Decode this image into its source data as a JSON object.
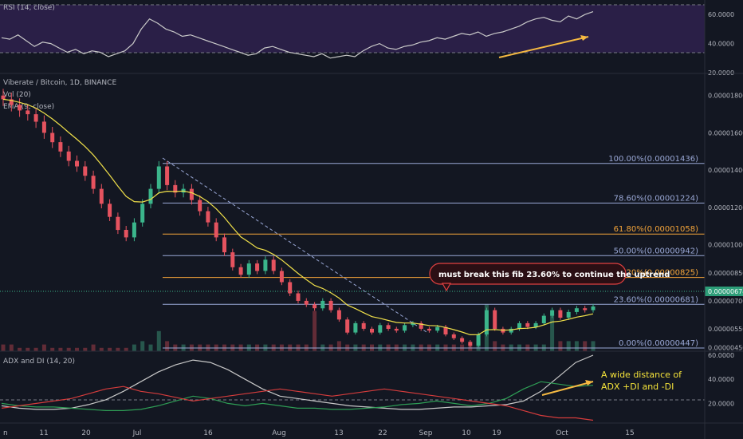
{
  "chart_data": [
    {
      "type": "line",
      "title": "RSI (14, close)",
      "ylim": [
        20,
        70
      ],
      "y_ticks": [
        "60.0000",
        "40.0000",
        "20.0000"
      ],
      "bands": [
        30,
        70
      ],
      "series": [
        {
          "color": "#c8c8c8",
          "values": [
            44,
            43,
            46,
            42,
            38,
            41,
            40,
            37,
            34,
            36,
            33,
            35,
            34,
            31,
            33,
            35,
            40,
            50,
            57,
            54,
            50,
            48,
            45,
            46,
            44,
            42,
            40,
            38,
            36,
            34,
            32,
            33,
            37,
            38,
            36,
            34,
            33,
            32,
            31,
            33,
            30,
            31,
            32,
            31,
            35,
            38,
            40,
            37,
            36,
            38,
            39,
            41,
            42,
            44,
            43,
            45,
            47,
            46,
            48,
            45,
            47,
            48,
            50,
            52,
            55,
            57,
            58,
            56,
            55,
            59,
            57,
            60,
            62
          ]
        }
      ]
    },
    {
      "type": "candlestick",
      "title": "Viberate / Bitcoin, 1D, BINANCE",
      "legend": [
        "Vol (20)",
        "EMA (9, close)"
      ],
      "x_ticks": [
        "n",
        "11",
        "20",
        "Jul",
        "16",
        "Aug",
        "13",
        "22",
        "Sep",
        "10",
        "19",
        "Oct",
        "15"
      ],
      "y_ticks": [
        "0.00001800",
        "0.00001600",
        "0.00001400",
        "0.00001200",
        "0.00001000",
        "0.00000850",
        "0.00000700",
        "0.00000550",
        "0.00000450"
      ],
      "last_price": "0.00000674",
      "ylim": [
        4.3e-06,
        1.85e-05
      ],
      "ema_color": "#f0e04a",
      "up_color": "#3bb58b",
      "down_color": "#e5535f",
      "fib_levels": [
        {
          "label": "100.00%(0.00001436)",
          "value": 1.436e-05,
          "color": "#9aa8d6"
        },
        {
          "label": "78.60%(0.00001224)",
          "value": 1.224e-05,
          "color": "#9aa8d6"
        },
        {
          "label": "61.80%(0.00001058)",
          "value": 1.058e-05,
          "color": "#f5a53a"
        },
        {
          "label": "50.00%(0.00000942)",
          "value": 9.42e-06,
          "color": "#9aa8d6"
        },
        {
          "label": "38.20%(0.00000825)",
          "value": 8.25e-06,
          "color": "#f5a53a"
        },
        {
          "label": "23.60%(0.00000681)",
          "value": 6.81e-06,
          "color": "#9aa8d6"
        },
        {
          "label": "0.00%(0.00000447)",
          "value": 4.47e-06,
          "color": "#9aa8d6"
        }
      ],
      "candles": [
        [
          1.8e-05,
          1.78e-05
        ],
        [
          1.78e-05,
          1.75e-05
        ],
        [
          1.75e-05,
          1.72e-05
        ],
        [
          1.72e-05,
          1.7e-05
        ],
        [
          1.7e-05,
          1.66e-05
        ],
        [
          1.66e-05,
          1.6e-05
        ],
        [
          1.6e-05,
          1.55e-05
        ],
        [
          1.55e-05,
          1.5e-05
        ],
        [
          1.5e-05,
          1.45e-05
        ],
        [
          1.45e-05,
          1.42e-05
        ],
        [
          1.42e-05,
          1.37e-05
        ],
        [
          1.37e-05,
          1.3e-05
        ],
        [
          1.3e-05,
          1.22e-05
        ],
        [
          1.22e-05,
          1.15e-05
        ],
        [
          1.15e-05,
          1.08e-05
        ],
        [
          1.08e-05,
          1.04e-05
        ],
        [
          1.04e-05,
          1.12e-05
        ],
        [
          1.12e-05,
          1.22e-05
        ],
        [
          1.22e-05,
          1.3e-05
        ],
        [
          1.3e-05,
          1.42e-05
        ],
        [
          1.42e-05,
          1.32e-05
        ],
        [
          1.32e-05,
          1.28e-05
        ],
        [
          1.28e-05,
          1.3e-05
        ],
        [
          1.3e-05,
          1.24e-05
        ],
        [
          1.24e-05,
          1.18e-05
        ],
        [
          1.18e-05,
          1.12e-05
        ],
        [
          1.12e-05,
          1.04e-05
        ],
        [
          1.04e-05,
          9.6e-06
        ],
        [
          9.6e-06,
          8.8e-06
        ],
        [
          8.8e-06,
          8.4e-06
        ],
        [
          8.4e-06,
          9e-06
        ],
        [
          9e-06,
          8.6e-06
        ],
        [
          8.6e-06,
          9.2e-06
        ],
        [
          9.2e-06,
          8.6e-06
        ],
        [
          8.6e-06,
          8e-06
        ],
        [
          8e-06,
          7.4e-06
        ],
        [
          7.4e-06,
          7e-06
        ],
        [
          7e-06,
          6.8e-06
        ],
        [
          6.8e-06,
          6.6e-06
        ],
        [
          6.6e-06,
          7e-06
        ],
        [
          7e-06,
          6.5e-06
        ],
        [
          6.5e-06,
          6e-06
        ],
        [
          6e-06,
          5.3e-06
        ],
        [
          5.3e-06,
          5.8e-06
        ],
        [
          5.8e-06,
          5.5e-06
        ],
        [
          5.5e-06,
          5.3e-06
        ],
        [
          5.3e-06,
          5.7e-06
        ],
        [
          5.7e-06,
          5.5e-06
        ],
        [
          5.5e-06,
          5.4e-06
        ],
        [
          5.4e-06,
          5.7e-06
        ],
        [
          5.7e-06,
          5.8e-06
        ],
        [
          5.8e-06,
          5.5e-06
        ],
        [
          5.5e-06,
          5.4e-06
        ],
        [
          5.4e-06,
          5.6e-06
        ],
        [
          5.6e-06,
          5.2e-06
        ],
        [
          5.2e-06,
          5e-06
        ],
        [
          5e-06,
          4.8e-06
        ],
        [
          4.8e-06,
          4.6e-06
        ],
        [
          4.6e-06,
          5.2e-06
        ],
        [
          5.2e-06,
          6.5e-06
        ],
        [
          6.5e-06,
          5.5e-06
        ],
        [
          5.5e-06,
          5.3e-06
        ],
        [
          5.3e-06,
          5.5e-06
        ],
        [
          5.5e-06,
          5.8e-06
        ],
        [
          5.8e-06,
          5.6e-06
        ],
        [
          5.6e-06,
          5.8e-06
        ],
        [
          5.8e-06,
          6.2e-06
        ],
        [
          6.2e-06,
          6.5e-06
        ],
        [
          6.5e-06,
          6.1e-06
        ],
        [
          6.1e-06,
          6.4e-06
        ],
        [
          6.4e-06,
          6.6e-06
        ],
        [
          6.6e-06,
          6.5e-06
        ],
        [
          6.5e-06,
          6.7e-06
        ]
      ],
      "volumes": [
        2,
        2,
        1,
        1,
        1,
        2,
        1,
        1,
        1,
        1,
        1,
        2,
        1,
        1,
        1,
        1,
        2,
        3,
        2,
        6,
        3,
        2,
        2,
        2,
        2,
        2,
        2,
        2,
        2,
        2,
        2,
        2,
        2,
        2,
        2,
        2,
        2,
        2,
        12,
        2,
        2,
        3,
        2,
        2,
        2,
        2,
        2,
        2,
        2,
        2,
        2,
        2,
        2,
        2,
        2,
        2,
        2,
        2,
        3,
        14,
        3,
        2,
        2,
        2,
        2,
        2,
        2,
        11,
        3,
        3,
        3,
        3,
        3
      ],
      "annotation": "must break this fib 23.60% to continue the uptrend"
    },
    {
      "type": "line",
      "title": "ADX and DI (14, 20)",
      "ylim": [
        5,
        62
      ],
      "y_ticks": [
        "60.0000",
        "40.0000",
        "20.0000"
      ],
      "band": 20,
      "series": [
        {
          "color": "#c8c8c8",
          "values": [
            18,
            16,
            15,
            15,
            16,
            19,
            23,
            30,
            38,
            46,
            52,
            56,
            54,
            48,
            40,
            32,
            26,
            24,
            22,
            20,
            18,
            17,
            16,
            15,
            15,
            16,
            17,
            17,
            18,
            19,
            22,
            30,
            42,
            54,
            60
          ]
        },
        {
          "color": "#2e9d55",
          "values": [
            20,
            18,
            17,
            17,
            16,
            15,
            14,
            14,
            15,
            18,
            22,
            26,
            24,
            20,
            18,
            20,
            18,
            16,
            16,
            15,
            15,
            16,
            17,
            19,
            20,
            22,
            20,
            18,
            20,
            24,
            32,
            38,
            36,
            34,
            35
          ]
        },
        {
          "color": "#d43c3c",
          "values": [
            16,
            18,
            20,
            22,
            24,
            28,
            32,
            34,
            30,
            28,
            25,
            22,
            24,
            26,
            28,
            30,
            32,
            30,
            28,
            26,
            28,
            30,
            32,
            30,
            28,
            26,
            24,
            22,
            20,
            18,
            14,
            10,
            8,
            8,
            6
          ]
        }
      ],
      "annotation": "A wide distance of\nADX +DI and -DI"
    }
  ]
}
